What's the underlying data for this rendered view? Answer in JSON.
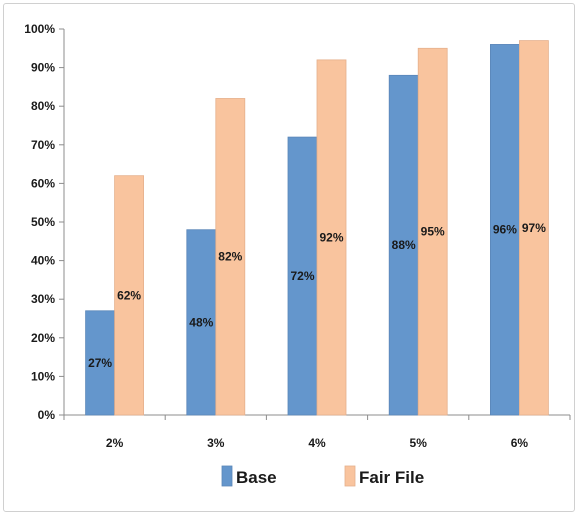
{
  "chart_data": {
    "type": "bar",
    "categories": [
      "2%",
      "3%",
      "4%",
      "5%",
      "6%"
    ],
    "series": [
      {
        "name": "Base",
        "values": [
          27,
          48,
          72,
          88,
          96
        ],
        "labels": [
          "27%",
          "48%",
          "72%",
          "88%",
          "96%"
        ],
        "color": "#6496cc"
      },
      {
        "name": "Fair File",
        "values": [
          62,
          82,
          92,
          95,
          97
        ],
        "labels": [
          "62%",
          "82%",
          "92%",
          "95%",
          "97%"
        ],
        "color": "#f9c49e"
      }
    ],
    "title": "",
    "xlabel": "",
    "ylabel": "",
    "ylim": [
      0,
      100
    ],
    "yticks": [
      "0%",
      "10%",
      "20%",
      "30%",
      "40%",
      "50%",
      "60%",
      "70%",
      "80%",
      "90%",
      "100%"
    ],
    "grid": false,
    "legend": "bottom"
  }
}
